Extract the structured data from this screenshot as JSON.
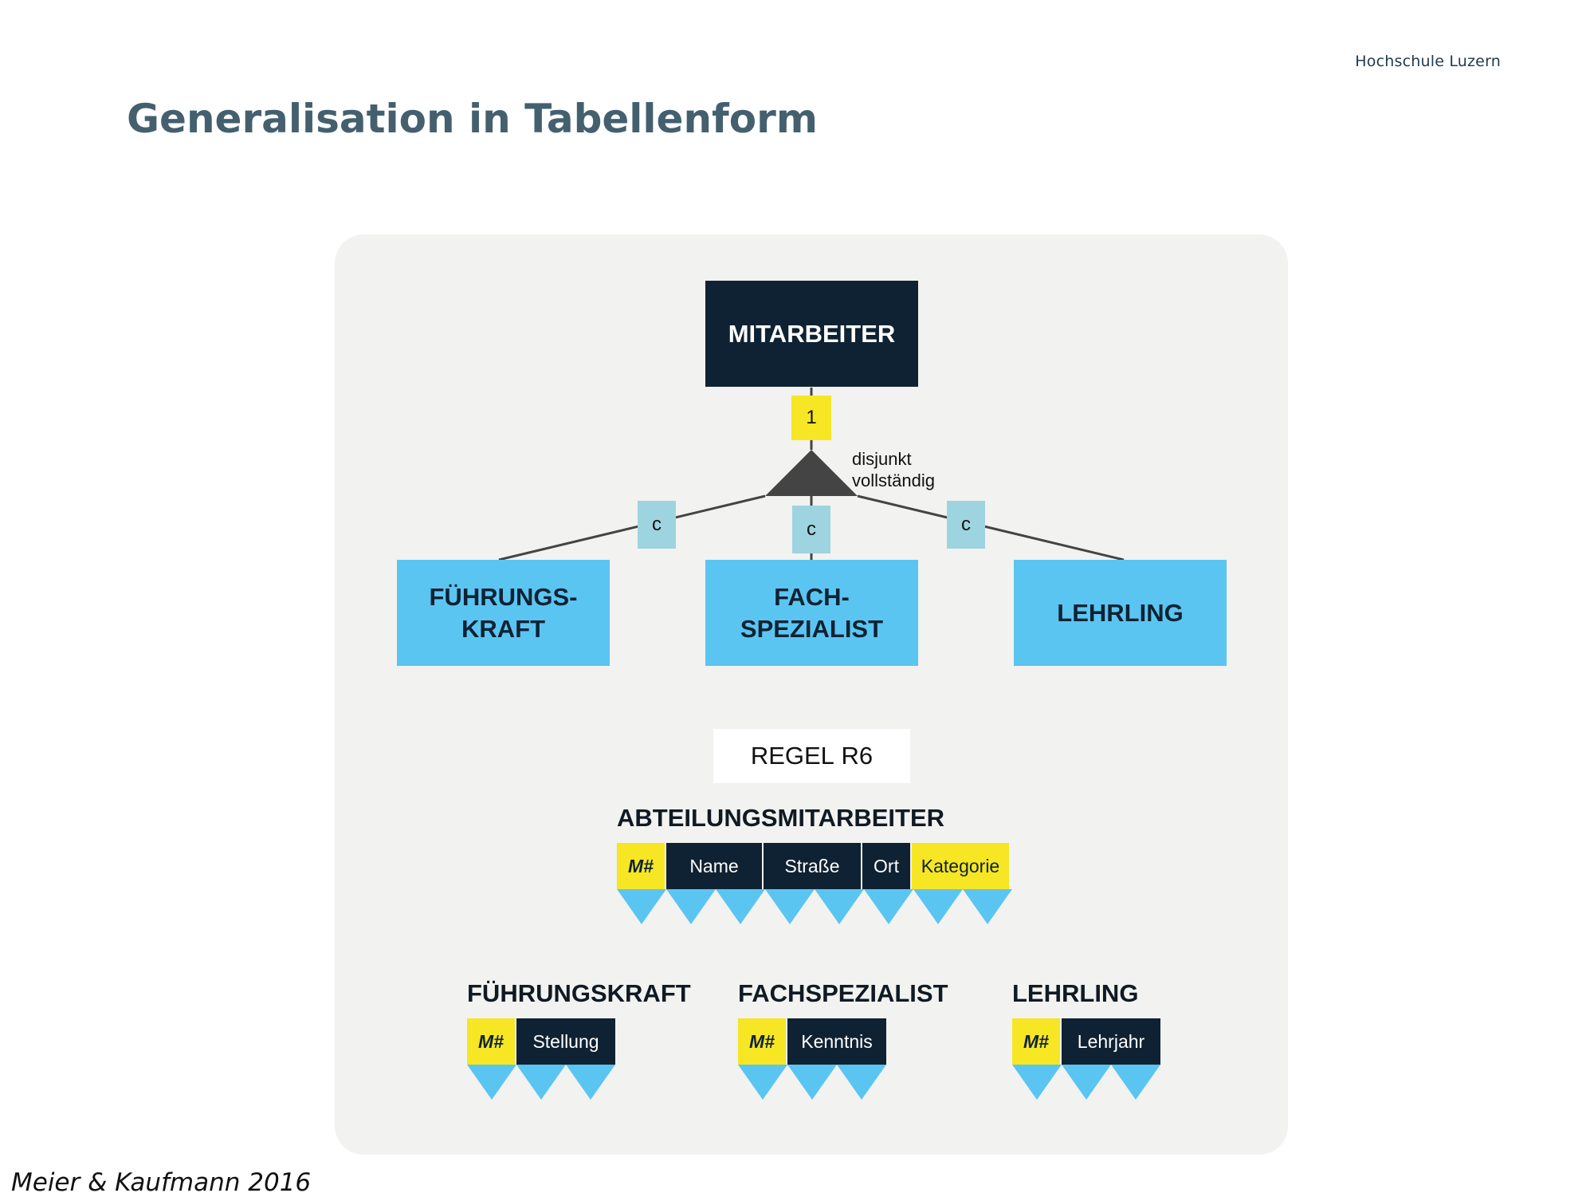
{
  "header": {
    "logo": "Hochschule Luzern",
    "title": "Generalisation in Tabellenform"
  },
  "diagram": {
    "superclass": "MITARBEITER",
    "super_cardinality": "1",
    "constraint": "disjunkt\nvollständig",
    "subclasses": [
      {
        "label": "FÜHRUNGS-\nKRAFT",
        "cardinality": "c"
      },
      {
        "label": "FACH-\nSPEZIALIST",
        "cardinality": "c"
      },
      {
        "label": "LEHRLING",
        "cardinality": "c"
      }
    ]
  },
  "rule": {
    "prefix": "REGEL",
    "name": "R6"
  },
  "tables": {
    "main": {
      "name": "ABTEILUNGSMITARBEITER",
      "columns": [
        "M#",
        "Name",
        "Straße",
        "Ort",
        "Kategorie"
      ]
    },
    "sub": [
      {
        "name": "FÜHRUNGSKRAFT",
        "columns": [
          "M#",
          "Stellung"
        ]
      },
      {
        "name": "FACHSPEZIALIST",
        "columns": [
          "M#",
          "Kenntnis"
        ]
      },
      {
        "name": "LEHRLING",
        "columns": [
          "M#",
          "Lehrjahr"
        ]
      }
    ]
  },
  "citation": "Meier & Kaufmann 2016",
  "colors": {
    "dark_entity": "#0f2233",
    "light_entity": "#5bc5f2",
    "key_yellow": "#f6e623",
    "card_teal": "#9ed4e0",
    "title": "#44606f"
  }
}
